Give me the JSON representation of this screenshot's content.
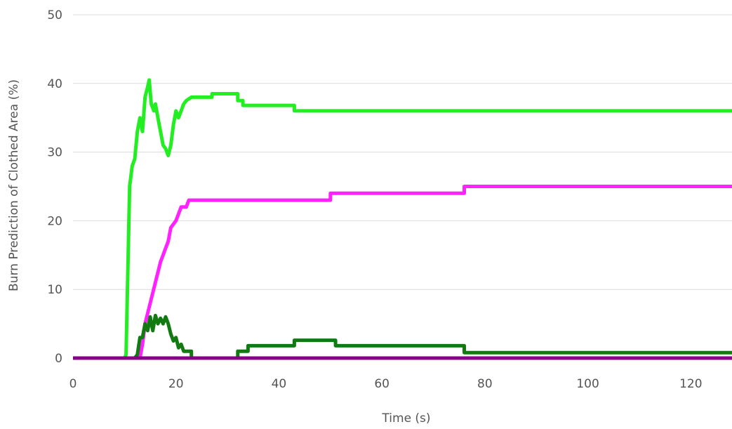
{
  "chart_data": {
    "type": "line",
    "title": "",
    "xlabel": "Time (s)",
    "ylabel": "Burn Prediction of Clothed Area (%)",
    "xlim": [
      0,
      128
    ],
    "ylim": [
      0,
      50
    ],
    "x_ticks": [
      "0",
      "20",
      "40",
      "60",
      "80",
      "100",
      "120"
    ],
    "y_ticks": [
      "0",
      "10",
      "20",
      "30",
      "40",
      "50"
    ],
    "grid": "horizontal",
    "legend": "none",
    "series": [
      {
        "color": "#22ee22",
        "points": [
          [
            0,
            0
          ],
          [
            10,
            0
          ],
          [
            10.3,
            0.5
          ],
          [
            11,
            25
          ],
          [
            11.5,
            28
          ],
          [
            12,
            29
          ],
          [
            12.5,
            33
          ],
          [
            13,
            35
          ],
          [
            13.5,
            33
          ],
          [
            14,
            38
          ],
          [
            14.5,
            39.5
          ],
          [
            14.8,
            40.5
          ],
          [
            15.2,
            37
          ],
          [
            15.7,
            36
          ],
          [
            16,
            37
          ],
          [
            16.5,
            35
          ],
          [
            17,
            33
          ],
          [
            17.5,
            31
          ],
          [
            18,
            30.5
          ],
          [
            18.5,
            29.5
          ],
          [
            19,
            31
          ],
          [
            19.5,
            34
          ],
          [
            20,
            36
          ],
          [
            20.5,
            35
          ],
          [
            21,
            36
          ],
          [
            21.5,
            37
          ],
          [
            22,
            37.5
          ],
          [
            23,
            38
          ],
          [
            27,
            38
          ],
          [
            27,
            38.5
          ],
          [
            32,
            38.5
          ],
          [
            32,
            37.5
          ],
          [
            33,
            37.5
          ],
          [
            33,
            36.8
          ],
          [
            43,
            36.8
          ],
          [
            43,
            36
          ],
          [
            128,
            36
          ]
        ]
      },
      {
        "color": "#ff22ff",
        "points": [
          [
            0,
            0
          ],
          [
            13,
            0
          ],
          [
            13.5,
            2
          ],
          [
            14,
            5
          ],
          [
            15,
            8
          ],
          [
            16,
            11
          ],
          [
            17,
            14
          ],
          [
            17.5,
            15
          ],
          [
            18,
            16
          ],
          [
            18.5,
            17
          ],
          [
            19,
            19
          ],
          [
            20,
            20
          ],
          [
            20.5,
            21
          ],
          [
            21,
            22
          ],
          [
            22,
            22
          ],
          [
            22.5,
            23
          ],
          [
            50,
            23
          ],
          [
            50,
            24
          ],
          [
            76,
            24
          ],
          [
            76,
            25
          ],
          [
            128,
            25
          ]
        ]
      },
      {
        "color": "#117a11",
        "points": [
          [
            0,
            0
          ],
          [
            12,
            0
          ],
          [
            12.5,
            0.5
          ],
          [
            13,
            3
          ],
          [
            13.5,
            3
          ],
          [
            14,
            5
          ],
          [
            14.5,
            4
          ],
          [
            15,
            6
          ],
          [
            15.5,
            4
          ],
          [
            16,
            6.2
          ],
          [
            16.5,
            5
          ],
          [
            17,
            5.8
          ],
          [
            17.5,
            5
          ],
          [
            18,
            6
          ],
          [
            18.5,
            5
          ],
          [
            19,
            3.5
          ],
          [
            19.5,
            2.5
          ],
          [
            20,
            3
          ],
          [
            20.5,
            1.5
          ],
          [
            21,
            2
          ],
          [
            21.5,
            1
          ],
          [
            23,
            1
          ],
          [
            23,
            0
          ],
          [
            32,
            0
          ],
          [
            32,
            1
          ],
          [
            34,
            1
          ],
          [
            34,
            1.8
          ],
          [
            43,
            1.8
          ],
          [
            43,
            2.6
          ],
          [
            51,
            2.6
          ],
          [
            51,
            1.8
          ],
          [
            76,
            1.8
          ],
          [
            76,
            0.8
          ],
          [
            128,
            0.8
          ]
        ]
      },
      {
        "color": "#880088",
        "points": [
          [
            0,
            0
          ],
          [
            128,
            0
          ]
        ]
      }
    ]
  }
}
